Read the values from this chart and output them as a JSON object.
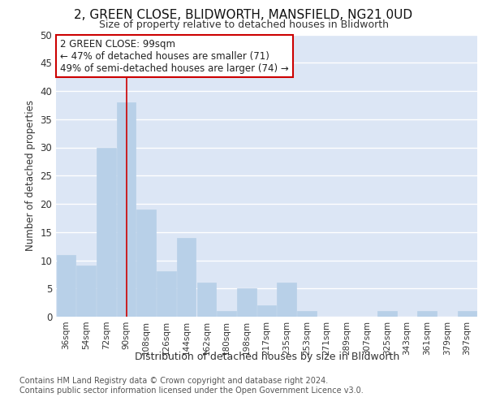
{
  "title": "2, GREEN CLOSE, BLIDWORTH, MANSFIELD, NG21 0UD",
  "subtitle": "Size of property relative to detached houses in Blidworth",
  "xlabel": "Distribution of detached houses by size in Blidworth",
  "ylabel": "Number of detached properties",
  "categories": [
    "36sqm",
    "54sqm",
    "72sqm",
    "90sqm",
    "108sqm",
    "126sqm",
    "144sqm",
    "162sqm",
    "180sqm",
    "198sqm",
    "217sqm",
    "235sqm",
    "253sqm",
    "271sqm",
    "289sqm",
    "307sqm",
    "325sqm",
    "343sqm",
    "361sqm",
    "379sqm",
    "397sqm"
  ],
  "values": [
    11,
    9,
    30,
    38,
    19,
    8,
    14,
    6,
    1,
    5,
    2,
    6,
    1,
    0,
    0,
    0,
    1,
    0,
    1,
    0,
    1
  ],
  "bar_color": "#b8d0e8",
  "bar_edge_color": "#b8d0e8",
  "background_color": "#dce6f5",
  "grid_color": "#ffffff",
  "redline_x": 3.5,
  "annotation_text": "2 GREEN CLOSE: 99sqm\n← 47% of detached houses are smaller (71)\n49% of semi-detached houses are larger (74) →",
  "annotation_box_color": "#ffffff",
  "annotation_box_edge": "#cc0000",
  "ylim": [
    0,
    50
  ],
  "yticks": [
    0,
    5,
    10,
    15,
    20,
    25,
    30,
    35,
    40,
    45,
    50
  ],
  "footer_line1": "Contains HM Land Registry data © Crown copyright and database right 2024.",
  "footer_line2": "Contains public sector information licensed under the Open Government Licence v3.0."
}
